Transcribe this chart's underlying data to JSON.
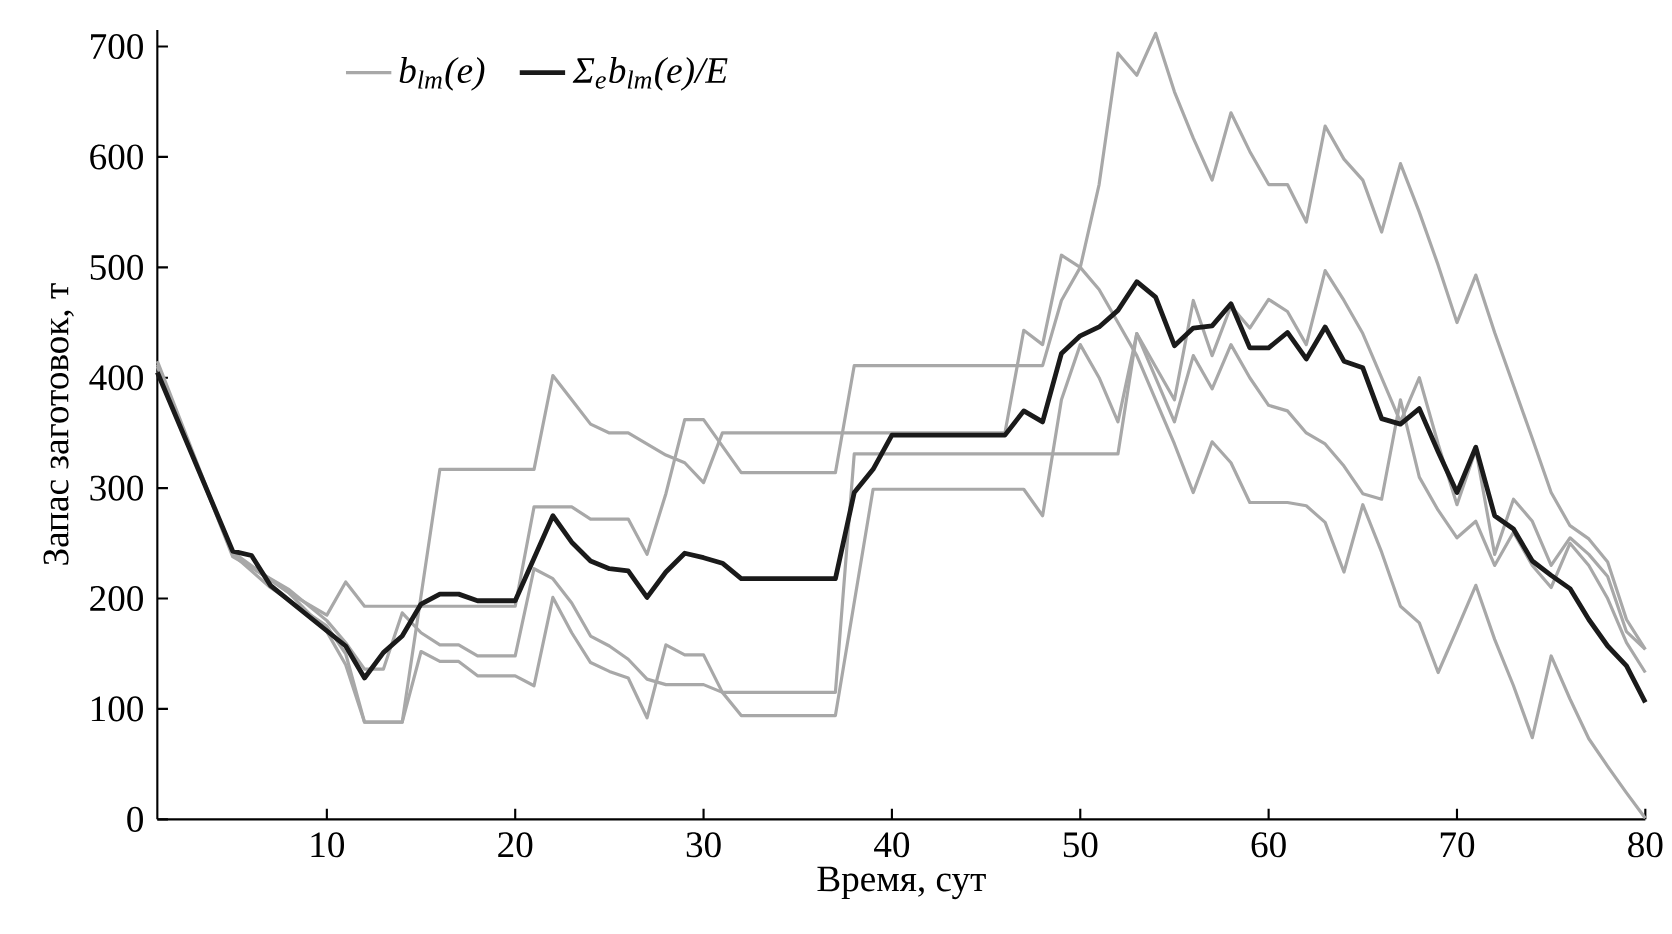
{
  "chart_data": {
    "type": "line",
    "xlabel": "Время, сут",
    "ylabel": "Запас заготовок, т",
    "xlim": [
      1,
      80
    ],
    "xticks": [
      10,
      20,
      30,
      40,
      50,
      60,
      70,
      80
    ],
    "ylim": [
      0,
      715
    ],
    "yticks": [
      0,
      100,
      200,
      300,
      400,
      500,
      600,
      700
    ],
    "legend": "top left",
    "series": [
      {
        "name": "b$_{lm}$(e)",
        "color": "#a8a8a8",
        "x": [
          1,
          5,
          7,
          10,
          11,
          12,
          14,
          16,
          21,
          22,
          23,
          24,
          25,
          26,
          27,
          28,
          29,
          30,
          31,
          38,
          40,
          46,
          47,
          48,
          49,
          50,
          51,
          52,
          53,
          54,
          55,
          56,
          57,
          58,
          59,
          60,
          61,
          62,
          63,
          64,
          65,
          66,
          67,
          68,
          69,
          70,
          71,
          72,
          73,
          74,
          75,
          76,
          77,
          78,
          79,
          80
        ],
        "values": [
          415,
          240,
          210,
          175,
          150,
          88,
          88,
          317,
          317,
          402,
          380,
          358,
          350,
          350,
          340,
          330,
          323,
          305,
          350,
          350,
          350,
          350,
          443,
          430,
          511,
          500,
          480,
          450,
          420,
          380,
          340,
          296,
          342,
          323,
          287,
          287,
          287,
          284,
          269,
          224,
          285,
          242,
          193,
          178,
          133,
          172,
          212,
          163,
          121,
          74,
          148,
          109,
          73,
          48,
          24,
          1
        ]
      },
      {
        "color": "#a8a8a8",
        "x": [
          1,
          5,
          8,
          10,
          11,
          12,
          20,
          21,
          23,
          24,
          26,
          27,
          28,
          29,
          30,
          32,
          37,
          38,
          47,
          48,
          49,
          50,
          51,
          52,
          53,
          54,
          55,
          56,
          57,
          58,
          59,
          60,
          61,
          62,
          63,
          64,
          65,
          66,
          67,
          68,
          69,
          70,
          71,
          72,
          73,
          74,
          75,
          76,
          77,
          78,
          79,
          80
        ],
        "values": [
          410,
          240,
          205,
          185,
          215,
          193,
          193,
          283,
          283,
          272,
          272,
          240,
          295,
          362,
          362,
          314,
          314,
          411,
          411,
          411,
          470,
          500,
          575,
          694,
          674,
          712,
          659,
          617,
          579,
          640,
          605,
          575,
          575,
          541,
          628,
          598,
          579,
          532,
          594,
          550,
          502,
          450,
          493,
          441,
          393,
          345,
          296,
          266,
          254,
          233,
          181,
          154
        ]
      },
      {
        "color": "#a8a8a8",
        "x": [
          1,
          5,
          8,
          10,
          11,
          12,
          13,
          14,
          15,
          16,
          17,
          18,
          20,
          21,
          22,
          23,
          24,
          25,
          26,
          27,
          28,
          30,
          31,
          37,
          38,
          52,
          53,
          54,
          55,
          56,
          57,
          58,
          59,
          60,
          61,
          62,
          63,
          64,
          65,
          66,
          67,
          68,
          69,
          70,
          71,
          72,
          73,
          74,
          75,
          76,
          77,
          78,
          79,
          80
        ],
        "values": [
          412,
          238,
          208,
          180,
          160,
          136,
          136,
          187,
          169,
          158,
          158,
          148,
          148,
          227,
          218,
          196,
          166,
          157,
          145,
          127,
          122,
          122,
          115,
          115,
          331,
          331,
          440,
          410,
          380,
          470,
          420,
          465,
          445,
          471,
          460,
          430,
          497,
          470,
          440,
          400,
          360,
          400,
          340,
          285,
          335,
          240,
          290,
          270,
          230,
          255,
          240,
          220,
          170,
          154
        ]
      },
      {
        "color": "#a8a8a8",
        "x": [
          1,
          5,
          8,
          10,
          11,
          12,
          14,
          15,
          16,
          17,
          18,
          20,
          21,
          22,
          23,
          24,
          25,
          26,
          27,
          28,
          29,
          30,
          31,
          32,
          37,
          39,
          47,
          48,
          49,
          50,
          51,
          52,
          53,
          54,
          55,
          56,
          57,
          58,
          59,
          60,
          61,
          62,
          63,
          64,
          65,
          66,
          67,
          68,
          69,
          70,
          71,
          72,
          73,
          74,
          75,
          76,
          77,
          78,
          79,
          80
        ],
        "values": [
          405,
          242,
          205,
          170,
          140,
          88,
          88,
          152,
          143,
          143,
          130,
          130,
          121,
          201,
          169,
          142,
          134,
          128,
          92,
          158,
          149,
          149,
          115,
          94,
          94,
          299,
          299,
          275,
          380,
          430,
          400,
          360,
          440,
          400,
          360,
          420,
          390,
          430,
          400,
          375,
          370,
          350,
          340,
          320,
          295,
          290,
          380,
          310,
          280,
          255,
          270,
          230,
          260,
          230,
          210,
          250,
          230,
          200,
          160,
          133
        ]
      },
      {
        "name": "Σ$_{e}$b$_{lm}$(e)/E",
        "color": "#1a1a1a",
        "x": [
          1,
          5,
          6,
          7,
          11,
          12,
          13,
          14,
          15,
          16,
          17,
          18,
          20,
          22,
          23,
          24,
          25,
          26,
          27,
          28,
          29,
          30,
          31,
          32,
          37,
          38,
          39,
          40,
          46,
          47,
          48,
          49,
          50,
          51,
          52,
          53,
          54,
          55,
          56,
          57,
          58,
          59,
          60,
          61,
          62,
          63,
          64,
          65,
          66,
          67,
          68,
          69,
          70,
          71,
          72,
          73,
          74,
          75,
          76,
          77,
          78,
          79,
          80
        ],
        "values": [
          405,
          243,
          239,
          212,
          157,
          128,
          151,
          166,
          195,
          204,
          204,
          198,
          198,
          275,
          251,
          234,
          227,
          225,
          201,
          224,
          241,
          237,
          232,
          218,
          218,
          296,
          317,
          348,
          348,
          370,
          360,
          422,
          438,
          446,
          461,
          487,
          473,
          429,
          445,
          447,
          467,
          427,
          427,
          441,
          417,
          446,
          415,
          409,
          363,
          358,
          372,
          333,
          296,
          337,
          275,
          263,
          234,
          221,
          209,
          181,
          157,
          139,
          106
        ]
      }
    ]
  }
}
